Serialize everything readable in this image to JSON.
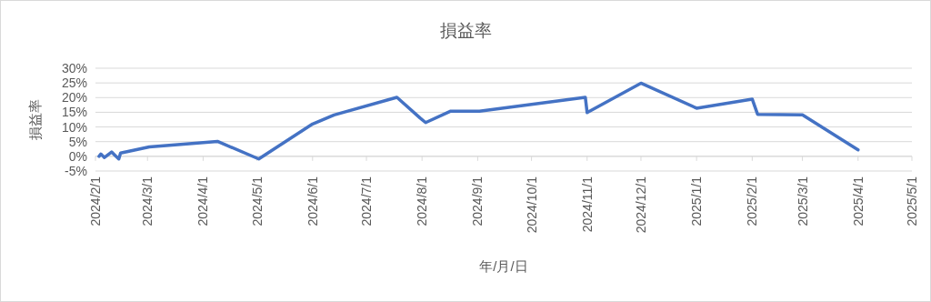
{
  "chart_data": {
    "type": "line",
    "title": "損益率",
    "xlabel": "年/月/日",
    "ylabel": "損益率",
    "x": [
      "2024-02-03",
      "2024-02-04",
      "2024-02-06",
      "2024-02-10",
      "2024-02-12",
      "2024-02-14",
      "2024-02-15",
      "2024-03-02",
      "2024-04-09",
      "2024-05-02",
      "2024-06-01",
      "2024-06-13",
      "2024-07-18",
      "2024-07-31",
      "2024-08-03",
      "2024-08-17",
      "2024-09-02",
      "2024-10-31",
      "2024-11-01",
      "2024-12-01",
      "2025-01-01",
      "2025-02-01",
      "2025-02-04",
      "2025-03-01",
      "2025-04-01"
    ],
    "series": [
      {
        "color": "#4472c4",
        "values": [
          0.0,
          0.8,
          -0.4,
          1.5,
          0.3,
          -0.9,
          1.1,
          3.2,
          5.1,
          -0.9,
          11.0,
          14.1,
          20.1,
          13.0,
          11.5,
          15.4,
          15.4,
          20.1,
          14.9,
          24.9,
          16.4,
          19.5,
          14.3,
          14.1,
          2.2
        ]
      }
    ],
    "xlim": [
      "2024-02-01",
      "2025-05-01"
    ],
    "xticks": [
      {
        "value": "2024-02-01",
        "label": "2024/2/1"
      },
      {
        "value": "2024-03-01",
        "label": "2024/3/1"
      },
      {
        "value": "2024-04-01",
        "label": "2024/4/1"
      },
      {
        "value": "2024-05-01",
        "label": "2024/5/1"
      },
      {
        "value": "2024-06-01",
        "label": "2024/6/1"
      },
      {
        "value": "2024-07-01",
        "label": "2024/7/1"
      },
      {
        "value": "2024-08-01",
        "label": "2024/8/1"
      },
      {
        "value": "2024-09-01",
        "label": "2024/9/1"
      },
      {
        "value": "2024-10-01",
        "label": "2024/10/1"
      },
      {
        "value": "2024-11-01",
        "label": "2024/11/1"
      },
      {
        "value": "2024-12-01",
        "label": "2024/12/1"
      },
      {
        "value": "2025-01-01",
        "label": "2025/1/1"
      },
      {
        "value": "2025-02-01",
        "label": "2025/2/1"
      },
      {
        "value": "2025-03-01",
        "label": "2025/3/1"
      },
      {
        "value": "2025-04-01",
        "label": "2025/4/1"
      },
      {
        "value": "2025-05-01",
        "label": "2025/5/1"
      }
    ],
    "ylim": [
      -5,
      30
    ],
    "yticks": [
      {
        "value": -5,
        "label": "-5%"
      },
      {
        "value": 0,
        "label": "0%"
      },
      {
        "value": 5,
        "label": "5%"
      },
      {
        "value": 10,
        "label": "10%"
      },
      {
        "value": 15,
        "label": "15%"
      },
      {
        "value": 20,
        "label": "20%"
      },
      {
        "value": 25,
        "label": "25%"
      },
      {
        "value": 30,
        "label": "30%"
      }
    ],
    "grid": "y",
    "marker": "none",
    "line_style": "solid"
  }
}
